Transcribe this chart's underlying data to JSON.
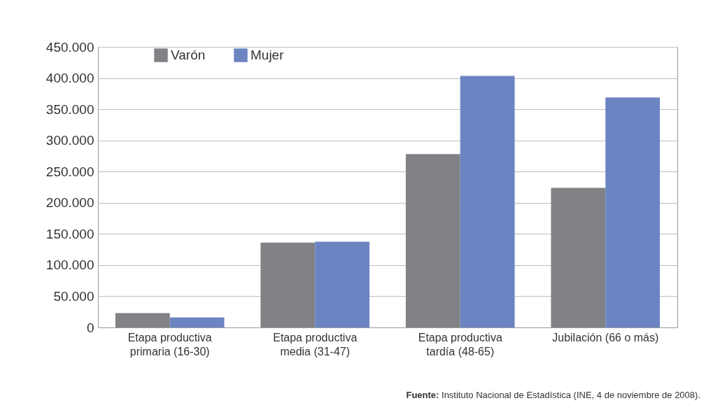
{
  "chart_data": {
    "type": "bar",
    "categories": [
      "Etapa productiva primaria (16-30)",
      "Etapa productiva media (31-47)",
      "Etapa productiva tardía (48-65)",
      "Jubilación (66 o más)"
    ],
    "series": [
      {
        "name": "Varón",
        "color": "#818285",
        "values": [
          23000,
          136000,
          278000,
          224000
        ]
      },
      {
        "name": "Mujer",
        "color": "#6c84c2",
        "values": [
          16000,
          137500,
          403500,
          369000
        ]
      }
    ],
    "ylim": [
      0,
      450000
    ],
    "yticks": [
      {
        "value": 0,
        "label": "0"
      },
      {
        "value": 50000,
        "label": "50.000"
      },
      {
        "value": 100000,
        "label": "100.000"
      },
      {
        "value": 150000,
        "label": "150.000"
      },
      {
        "value": 200000,
        "label": "200.000"
      },
      {
        "value": 250000,
        "label": "250.000"
      },
      {
        "value": 300000,
        "label": "300.000"
      },
      {
        "value": 350000,
        "label": "350.000"
      },
      {
        "value": 400000,
        "label": "400.000"
      },
      {
        "value": 450000,
        "label": "450.000"
      }
    ],
    "grid": true,
    "legend": "top left",
    "annotations": [
      "Fuente: Instituto Nacional de Estadística (INE, 4 de noviembre de 2008)."
    ]
  }
}
